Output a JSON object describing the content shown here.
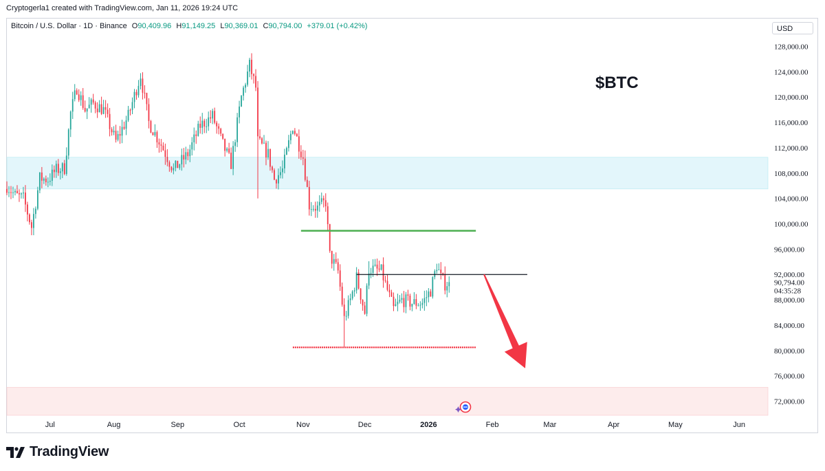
{
  "attribution": "Cryptogerla1 created with TradingView.com, Jan 11, 2026 19:24 UTC",
  "legend": {
    "symbol": "Bitcoin / U.S. Dollar · 1D · Binance",
    "o_label": "O",
    "o_value": "90,409.96",
    "h_label": "H",
    "h_value": "91,149.25",
    "l_label": "L",
    "l_value": "90,369.01",
    "c_label": "C",
    "c_value": "90,794.00",
    "change": "+379.01 (+0.42%)"
  },
  "currency": "USD",
  "brand": "TradingView",
  "colors": {
    "up": "#26a69a",
    "down": "#f23645",
    "support_line": "#f23645",
    "resistance_line": "#4caf50",
    "pivot_line": "#131722",
    "supply_zone": "#e3f6fb",
    "demand_zone": "#fdecec",
    "arrow": "#f23645"
  },
  "chart_data": {
    "type": "candlestick",
    "title": "$BTC",
    "symbol": "Bitcoin / U.S. Dollar",
    "interval": "1D",
    "exchange": "Binance",
    "y_axis": {
      "ticks": [
        72000,
        76000,
        80000,
        84000,
        88000,
        92000,
        96000,
        100000,
        104000,
        108000,
        112000,
        116000,
        120000,
        124000,
        128000
      ],
      "tick_labels": [
        "72,000.00",
        "76,000.00",
        "80,000.00",
        "84,000.00",
        "88,000.00",
        "92,000.00",
        "96,000.00",
        "100,000.00",
        "104,000.00",
        "108,000.00",
        "112,000.00",
        "116,000.00",
        "120,000.00",
        "124,000.00",
        "128,000.00"
      ],
      "ylim": [
        68000,
        131500
      ]
    },
    "x_axis": {
      "start": "2025-06-10",
      "end": "2026-06-15",
      "ticks": [
        {
          "date": "2025-07-01",
          "label": "Jul"
        },
        {
          "date": "2025-08-01",
          "label": "Aug"
        },
        {
          "date": "2025-09-01",
          "label": "Sep"
        },
        {
          "date": "2025-10-01",
          "label": "Oct"
        },
        {
          "date": "2025-11-01",
          "label": "Nov"
        },
        {
          "date": "2025-12-01",
          "label": "Dec"
        },
        {
          "date": "2026-01-01",
          "label": "2026"
        },
        {
          "date": "2026-02-01",
          "label": "Feb"
        },
        {
          "date": "2026-03-01",
          "label": "Mar"
        },
        {
          "date": "2026-04-01",
          "label": "Apr"
        },
        {
          "date": "2026-05-01",
          "label": "May"
        },
        {
          "date": "2026-06-01",
          "label": "Jun"
        }
      ]
    },
    "path_anchors": [
      [
        "2025-06-10",
        106000
      ],
      [
        "2025-06-14",
        104500
      ],
      [
        "2025-06-18",
        104000
      ],
      [
        "2025-06-22",
        99500
      ],
      [
        "2025-06-26",
        107200
      ],
      [
        "2025-06-30",
        107000
      ],
      [
        "2025-07-04",
        108500
      ],
      [
        "2025-07-08",
        108800
      ],
      [
        "2025-07-11",
        117500
      ],
      [
        "2025-07-14",
        121500
      ],
      [
        "2025-07-18",
        118000
      ],
      [
        "2025-07-22",
        119000
      ],
      [
        "2025-07-27",
        118000
      ],
      [
        "2025-08-02",
        113000
      ],
      [
        "2025-08-08",
        117000
      ],
      [
        "2025-08-14",
        123500
      ],
      [
        "2025-08-18",
        116000
      ],
      [
        "2025-08-24",
        112500
      ],
      [
        "2025-08-30",
        108500
      ],
      [
        "2025-09-06",
        111000
      ],
      [
        "2025-09-12",
        115500
      ],
      [
        "2025-09-18",
        117000
      ],
      [
        "2025-09-23",
        112500
      ],
      [
        "2025-09-27",
        109500
      ],
      [
        "2025-10-02",
        120000
      ],
      [
        "2025-10-06",
        125000
      ],
      [
        "2025-10-09",
        121500
      ],
      [
        "2025-10-10",
        113000
      ],
      [
        "2025-10-15",
        111000
      ],
      [
        "2025-10-18",
        107000
      ],
      [
        "2025-10-22",
        108500
      ],
      [
        "2025-10-27",
        115500
      ],
      [
        "2025-11-01",
        110500
      ],
      [
        "2025-11-04",
        103000
      ],
      [
        "2025-11-08",
        102500
      ],
      [
        "2025-11-12",
        103500
      ],
      [
        "2025-11-14",
        95000
      ],
      [
        "2025-11-18",
        92500
      ],
      [
        "2025-11-21",
        85000
      ],
      [
        "2025-11-24",
        88000
      ],
      [
        "2025-11-27",
        91500
      ],
      [
        "2025-12-01",
        86000
      ],
      [
        "2025-12-03",
        93000
      ],
      [
        "2025-12-09",
        92500
      ],
      [
        "2025-12-15",
        86500
      ],
      [
        "2025-12-19",
        88000
      ],
      [
        "2025-12-24",
        87500
      ],
      [
        "2025-12-29",
        87500
      ],
      [
        "2026-01-02",
        89500
      ],
      [
        "2026-01-05",
        93500
      ],
      [
        "2026-01-07",
        91500
      ],
      [
        "2026-01-09",
        90500
      ],
      [
        "2026-01-11",
        90794
      ]
    ],
    "wick_extremes": [
      {
        "date": "2025-06-22",
        "low": 98200
      },
      {
        "date": "2025-10-06",
        "high": 126200
      },
      {
        "date": "2025-10-10",
        "low": 104000
      },
      {
        "date": "2025-11-21",
        "low": 80600
      },
      {
        "date": "2025-12-03",
        "high": 94100
      }
    ],
    "last_close": 90794.0,
    "last_price_label": "90,794.00",
    "countdown": "04:35:28",
    "zones": [
      {
        "name": "supply-zone",
        "from": 105500,
        "to": 110500
      },
      {
        "name": "demand-zone",
        "from": 68000,
        "to": 74200
      }
    ],
    "levels": [
      {
        "name": "resistance-line",
        "price": 98900,
        "from": "2025-10-31",
        "to": "2026-01-24"
      },
      {
        "name": "pivot-line",
        "price": 92000,
        "from": "2025-11-27",
        "to": "2026-02-18"
      },
      {
        "name": "support-line",
        "price": 80500,
        "from": "2025-10-27",
        "to": "2026-01-24"
      }
    ],
    "projection_arrow": {
      "from_date": "2026-01-28",
      "from_price": 92000,
      "to_date": "2026-02-17",
      "to_price": 77200
    }
  }
}
